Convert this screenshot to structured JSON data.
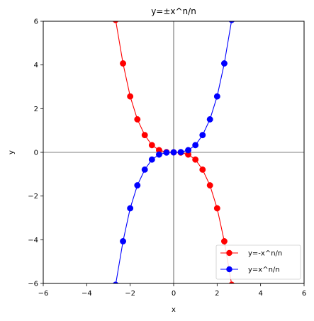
{
  "chart_data": {
    "type": "line",
    "title": "y=±x^n/n",
    "xlabel": "x",
    "ylabel": "y",
    "xlim": [
      -6,
      6
    ],
    "ylim": [
      -6,
      6
    ],
    "xticks": [
      -6,
      -4,
      -2,
      0,
      2,
      4,
      6
    ],
    "yticks": [
      -6,
      -4,
      -2,
      0,
      2,
      4,
      6
    ],
    "tick_labels_x": [
      "−6",
      "−4",
      "−2",
      "0",
      "2",
      "4",
      "6"
    ],
    "tick_labels_y": [
      "−6",
      "−4",
      "−2",
      "0",
      "2",
      "4",
      "6"
    ],
    "grid": false,
    "zero_lines": true,
    "legend_position": "lower-right",
    "series": [
      {
        "name": "y=-x^n/n",
        "color": "#ff0000",
        "marker": "circle",
        "x": [
          -2.67,
          -2.33,
          -2.0,
          -1.67,
          -1.33,
          -1.0,
          -0.67,
          -0.33,
          0.0,
          0.33,
          0.67,
          1.0,
          1.33,
          1.67,
          2.0,
          2.33,
          2.67
        ],
        "y": [
          6.06,
          4.07,
          2.56,
          1.51,
          0.79,
          0.33,
          0.1,
          0.01,
          0.0,
          -0.01,
          -0.1,
          -0.33,
          -0.79,
          -1.51,
          -2.56,
          -4.07,
          -6.06
        ]
      },
      {
        "name": "y=x^n/n",
        "color": "#0000ff",
        "marker": "circle",
        "x": [
          -2.67,
          -2.33,
          -2.0,
          -1.67,
          -1.33,
          -1.0,
          -0.67,
          -0.33,
          0.0,
          0.33,
          0.67,
          1.0,
          1.33,
          1.67,
          2.0,
          2.33,
          2.67
        ],
        "y": [
          -6.06,
          -4.07,
          -2.56,
          -1.51,
          -0.79,
          -0.33,
          -0.1,
          -0.01,
          0.0,
          0.01,
          0.1,
          0.33,
          0.79,
          1.51,
          2.56,
          4.07,
          6.06
        ]
      }
    ]
  }
}
